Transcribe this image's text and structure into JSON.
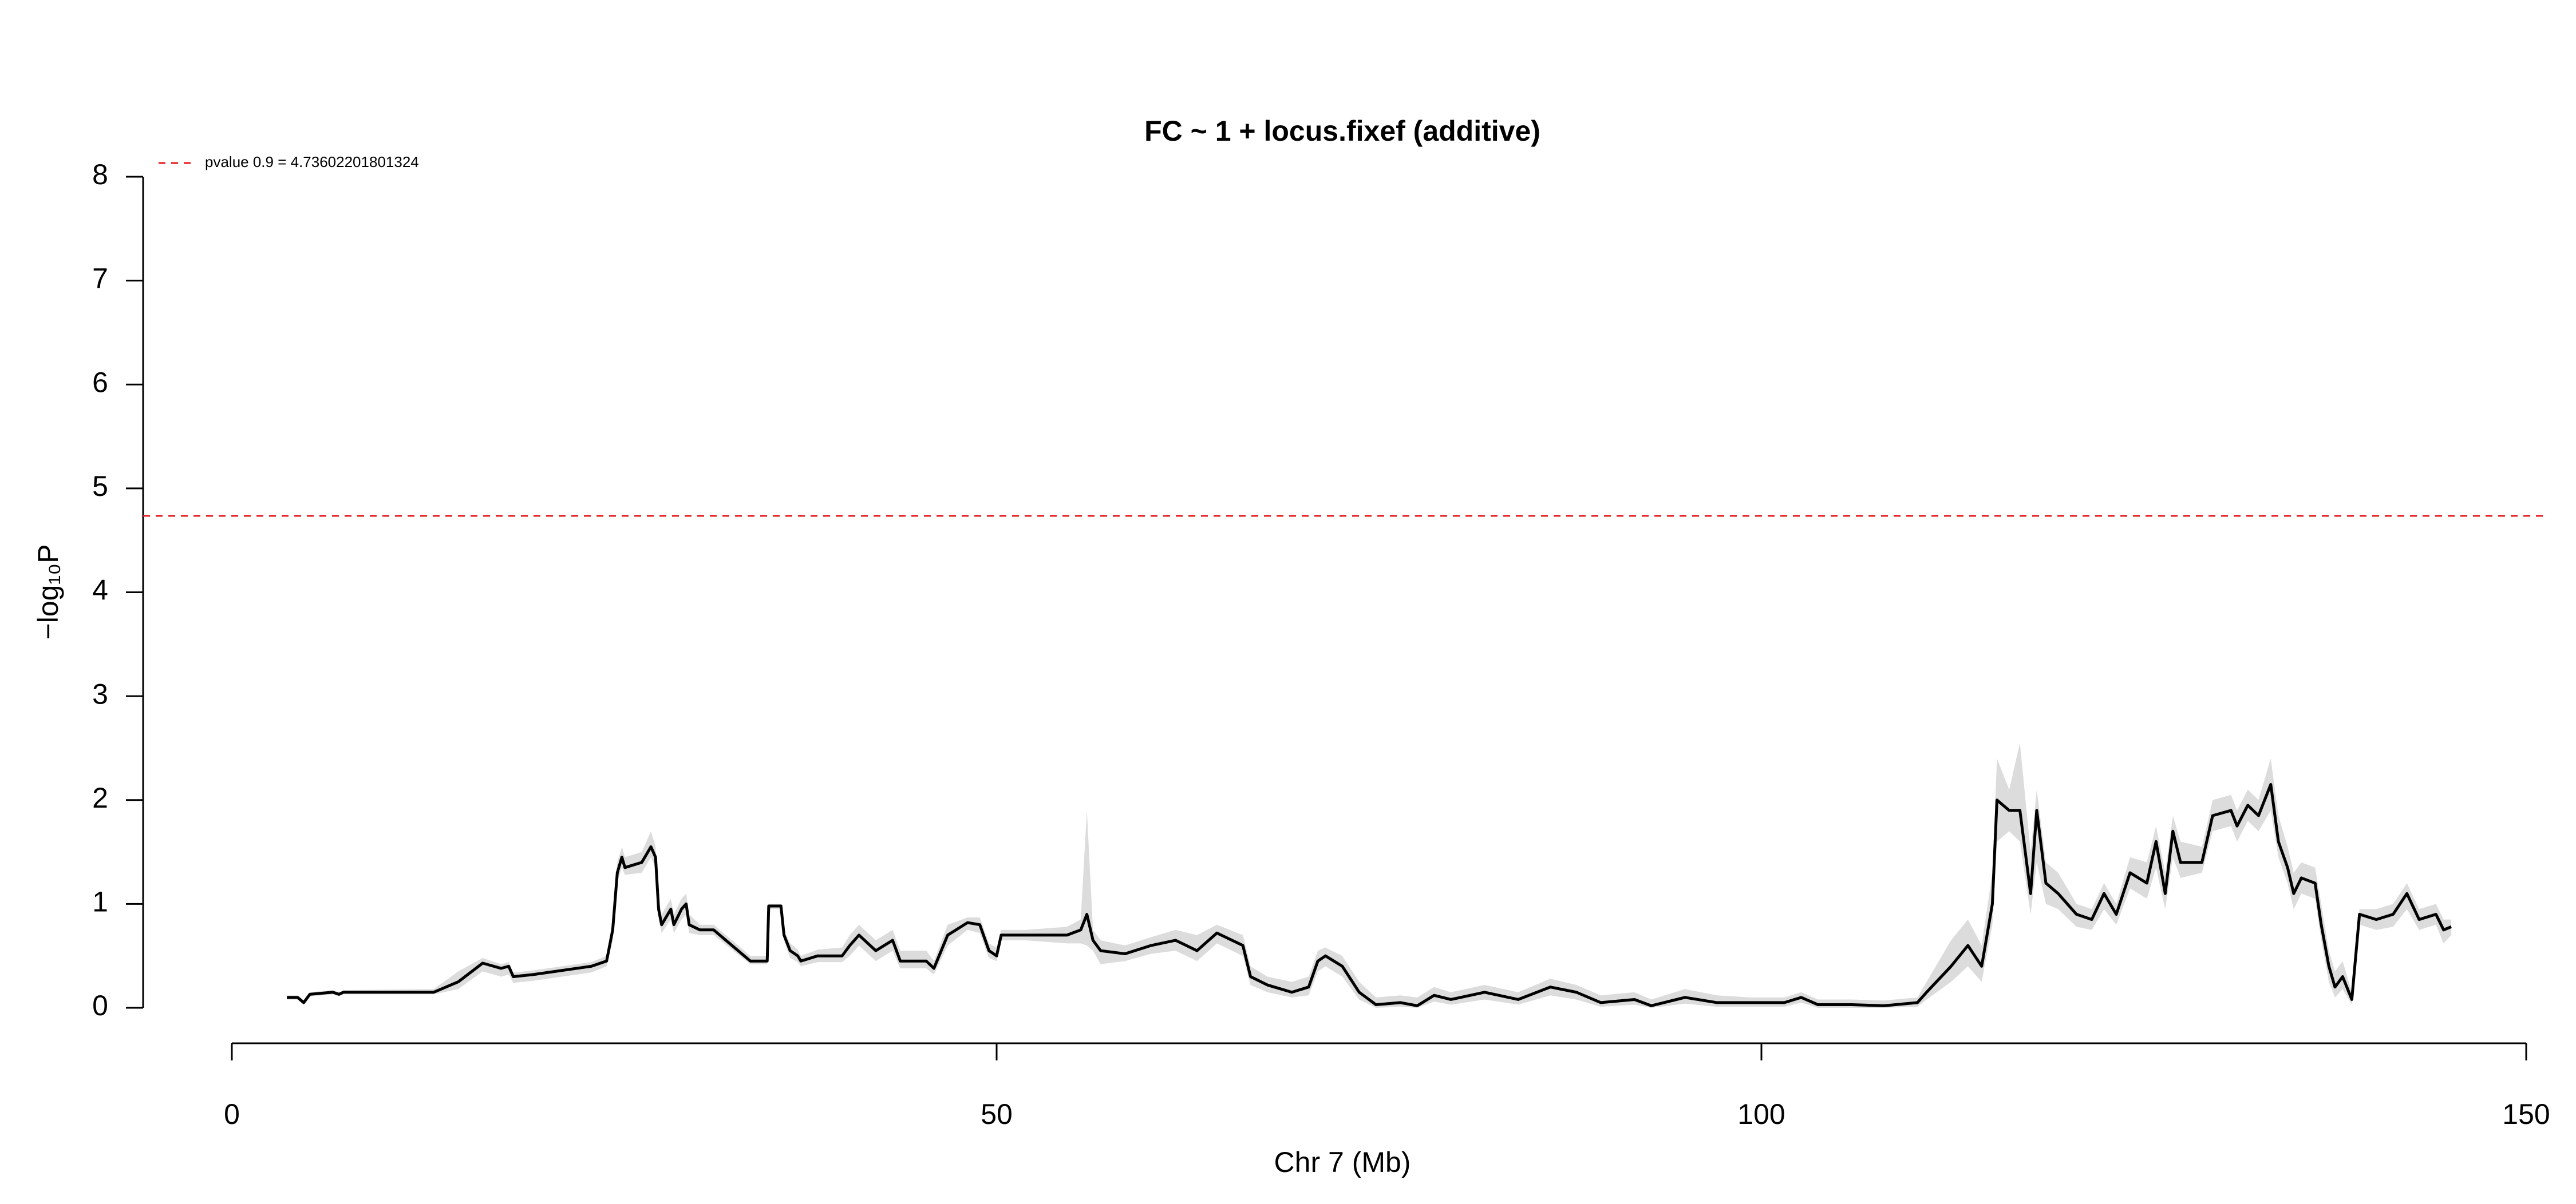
{
  "chart_data": {
    "type": "line",
    "title": "FC ~ 1 + locus.fixef (additive)",
    "xlabel": "Chr 7 (Mb)",
    "ylabel": "−log₁₀P",
    "xlim": [
      0,
      150
    ],
    "xticks": [
      0,
      50,
      100,
      150
    ],
    "ylim": [
      0,
      8
    ],
    "yticks": [
      0,
      1,
      2,
      3,
      4,
      5,
      6,
      7,
      8
    ],
    "x": [
      3.6,
      4.3,
      4.7,
      5.1,
      6.6,
      7,
      7.3,
      13.2,
      14.8,
      16.4,
      17.6,
      18.1,
      18.4,
      19.7,
      23.5,
      24.5,
      24.9,
      25.2,
      25.5,
      25.7,
      26.8,
      27.4,
      27.7,
      27.9,
      28.1,
      28.7,
      28.9,
      29.4,
      29.7,
      29.9,
      30.6,
      31.5,
      33.9,
      35,
      35.1,
      35.9,
      36.1,
      36.5,
      37,
      37.2,
      38.3,
      39.9,
      40.4,
      41,
      42.1,
      43.2,
      43.7,
      45.4,
      45.9,
      46.8,
      48.1,
      48.9,
      49.5,
      50,
      50.3,
      51.9,
      54.6,
      55.5,
      55.9,
      56.3,
      56.8,
      58.4,
      60.1,
      61.7,
      63.1,
      64.4,
      66.1,
      66.6,
      67.7,
      69.3,
      70.4,
      71,
      71.5,
      72.6,
      73.7,
      74.8,
      76.4,
      77.5,
      78.6,
      79.7,
      81.9,
      84.1,
      86.2,
      87.9,
      89.5,
      91.7,
      92.8,
      95,
      97.1,
      99.3,
      101.5,
      102.6,
      103.7,
      105.9,
      108,
      110.2,
      110.8,
      112.4,
      113.5,
      114.4,
      115.1,
      115.4,
      116.2,
      116.9,
      117.6,
      118,
      118.6,
      119.4,
      120.6,
      121.6,
      122.4,
      123.2,
      124.1,
      125.2,
      125.8,
      126.4,
      126.9,
      127.4,
      128.8,
      129.5,
      130.7,
      131.1,
      131.8,
      132.5,
      133.3,
      133.8,
      134.4,
      134.8,
      135.3,
      136.2,
      136.6,
      137.1,
      137.5,
      138,
      138.6,
      139.1,
      140.2,
      141.3,
      142.2,
      143,
      144.1,
      144.6,
      145.1
    ],
    "values": [
      0.1,
      0.1,
      0.05,
      0.13,
      0.15,
      0.13,
      0.15,
      0.15,
      0.25,
      0.43,
      0.38,
      0.4,
      0.3,
      0.32,
      0.4,
      0.45,
      0.75,
      1.3,
      1.45,
      1.35,
      1.4,
      1.55,
      1.45,
      0.95,
      0.8,
      0.95,
      0.8,
      0.95,
      1.0,
      0.8,
      0.75,
      0.75,
      0.45,
      0.45,
      0.98,
      0.98,
      0.7,
      0.55,
      0.5,
      0.45,
      0.5,
      0.5,
      0.6,
      0.7,
      0.55,
      0.65,
      0.45,
      0.45,
      0.38,
      0.7,
      0.82,
      0.8,
      0.55,
      0.5,
      0.7,
      0.7,
      0.7,
      0.75,
      0.9,
      0.65,
      0.55,
      0.52,
      0.6,
      0.65,
      0.55,
      0.72,
      0.6,
      0.3,
      0.22,
      0.15,
      0.2,
      0.45,
      0.5,
      0.4,
      0.15,
      0.03,
      0.05,
      0.02,
      0.12,
      0.08,
      0.15,
      0.08,
      0.2,
      0.15,
      0.05,
      0.08,
      0.02,
      0.1,
      0.05,
      0.05,
      0.05,
      0.1,
      0.03,
      0.03,
      0.02,
      0.05,
      0.15,
      0.4,
      0.6,
      0.4,
      1.0,
      2.0,
      1.9,
      1.9,
      1.1,
      1.9,
      1.2,
      1.1,
      0.9,
      0.85,
      1.1,
      0.9,
      1.3,
      1.2,
      1.6,
      1.1,
      1.7,
      1.4,
      1.4,
      1.85,
      1.9,
      1.75,
      1.95,
      1.85,
      2.15,
      1.6,
      1.35,
      1.1,
      1.25,
      1.2,
      0.8,
      0.4,
      0.2,
      0.3,
      0.08,
      0.9,
      0.85,
      0.9,
      1.1,
      0.85,
      0.9,
      0.75,
      0.78
    ],
    "color": "#000000",
    "band": {
      "color": "#dcdcdc",
      "upper": [
        0.12,
        0.12,
        0.07,
        0.15,
        0.17,
        0.15,
        0.17,
        0.18,
        0.35,
        0.48,
        0.42,
        0.44,
        0.34,
        0.36,
        0.44,
        0.5,
        0.85,
        1.4,
        1.55,
        1.45,
        1.5,
        1.7,
        1.55,
        1.05,
        0.9,
        1.05,
        0.9,
        1.05,
        1.1,
        0.9,
        0.8,
        0.8,
        0.5,
        0.5,
        1.0,
        1.0,
        0.75,
        0.62,
        0.56,
        0.5,
        0.56,
        0.58,
        0.7,
        0.8,
        0.65,
        0.75,
        0.55,
        0.55,
        0.45,
        0.8,
        0.87,
        0.87,
        0.62,
        0.58,
        0.75,
        0.75,
        0.78,
        0.85,
        1.9,
        0.75,
        0.65,
        0.6,
        0.68,
        0.75,
        0.7,
        0.8,
        0.7,
        0.4,
        0.3,
        0.25,
        0.3,
        0.55,
        0.58,
        0.5,
        0.25,
        0.1,
        0.12,
        0.1,
        0.2,
        0.15,
        0.22,
        0.15,
        0.28,
        0.22,
        0.12,
        0.15,
        0.08,
        0.18,
        0.12,
        0.1,
        0.1,
        0.15,
        0.08,
        0.08,
        0.07,
        0.1,
        0.25,
        0.65,
        0.85,
        0.6,
        1.3,
        2.4,
        2.1,
        2.55,
        1.5,
        2.1,
        1.4,
        1.3,
        1.0,
        0.95,
        1.2,
        1.0,
        1.45,
        1.4,
        1.75,
        1.3,
        1.85,
        1.6,
        1.55,
        2.0,
        2.05,
        1.9,
        2.1,
        2.0,
        2.4,
        1.85,
        1.55,
        1.3,
        1.4,
        1.35,
        1.0,
        0.55,
        0.35,
        0.45,
        0.15,
        0.95,
        0.95,
        1.0,
        1.2,
        0.95,
        1.0,
        0.85,
        0.85
      ],
      "lower": [
        0.08,
        0.08,
        0.03,
        0.11,
        0.13,
        0.11,
        0.13,
        0.13,
        0.18,
        0.35,
        0.3,
        0.32,
        0.24,
        0.26,
        0.34,
        0.4,
        0.65,
        1.2,
        1.35,
        1.28,
        1.3,
        1.45,
        1.35,
        0.85,
        0.72,
        0.85,
        0.72,
        0.85,
        0.9,
        0.72,
        0.7,
        0.7,
        0.42,
        0.42,
        0.95,
        0.95,
        0.65,
        0.48,
        0.44,
        0.4,
        0.44,
        0.44,
        0.5,
        0.6,
        0.45,
        0.55,
        0.38,
        0.38,
        0.32,
        0.6,
        0.75,
        0.72,
        0.48,
        0.45,
        0.65,
        0.65,
        0.62,
        0.62,
        0.6,
        0.55,
        0.42,
        0.45,
        0.52,
        0.55,
        0.45,
        0.62,
        0.5,
        0.22,
        0.15,
        0.1,
        0.12,
        0.35,
        0.4,
        0.3,
        0.08,
        0.0,
        0.01,
        0.0,
        0.06,
        0.03,
        0.08,
        0.03,
        0.12,
        0.08,
        0.01,
        0.03,
        0.0,
        0.04,
        0.01,
        0.01,
        0.01,
        0.05,
        0.0,
        0.0,
        0.0,
        0.01,
        0.08,
        0.25,
        0.4,
        0.25,
        0.8,
        1.6,
        1.7,
        1.6,
        0.9,
        1.4,
        1.0,
        0.95,
        0.78,
        0.75,
        0.95,
        0.8,
        1.15,
        1.05,
        1.35,
        0.95,
        1.45,
        1.25,
        1.3,
        1.7,
        1.75,
        1.6,
        1.8,
        1.7,
        1.9,
        1.45,
        1.2,
        0.95,
        1.1,
        1.05,
        0.65,
        0.25,
        0.1,
        0.18,
        0.03,
        0.8,
        0.75,
        0.78,
        0.95,
        0.75,
        0.8,
        0.62,
        0.7
      ]
    },
    "threshold": {
      "value": 4.73602201801324,
      "label": "pvalue 0.9 = 4.73602201801324",
      "color": "#e41a1c"
    },
    "legend": "top-left"
  }
}
